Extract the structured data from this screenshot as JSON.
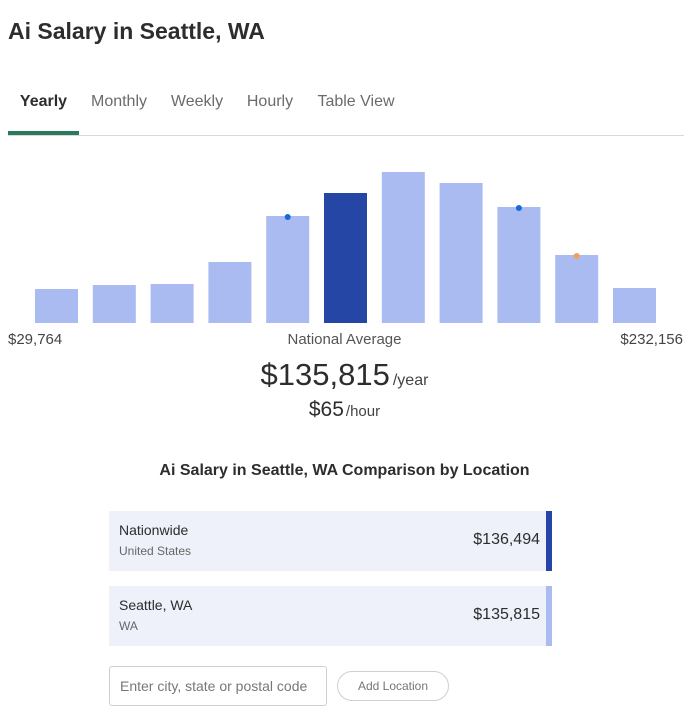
{
  "page": {
    "title": "Ai Salary in Seattle, WA"
  },
  "tabs": [
    {
      "label": "Yearly",
      "active": true
    },
    {
      "label": "Monthly",
      "active": false
    },
    {
      "label": "Weekly",
      "active": false
    },
    {
      "label": "Hourly",
      "active": false
    },
    {
      "label": "Table View",
      "active": false
    }
  ],
  "chart_data": {
    "type": "bar",
    "colors": {
      "bar": "#a9bbf0",
      "highlight": "#2546a5",
      "marker_blue": "#1769d9",
      "marker_orange": "#f5a05a"
    },
    "bars": [
      {
        "value": 34,
        "highlight": false,
        "marker": null
      },
      {
        "value": 38,
        "highlight": false,
        "marker": null
      },
      {
        "value": 39,
        "highlight": false,
        "marker": null
      },
      {
        "value": 61,
        "highlight": false,
        "marker": null
      },
      {
        "value": 107,
        "highlight": false,
        "marker": "blue",
        "marker_value": 106
      },
      {
        "value": 130,
        "highlight": true,
        "marker": null
      },
      {
        "value": 151,
        "highlight": false,
        "marker": null
      },
      {
        "value": 140,
        "highlight": false,
        "marker": null
      },
      {
        "value": 116,
        "highlight": false,
        "marker": "blue",
        "marker_value": 115
      },
      {
        "value": 68,
        "highlight": false,
        "marker": "orange",
        "marker_value": 67
      },
      {
        "value": 35,
        "highlight": false,
        "marker": null
      }
    ],
    "range_min": "$29,764",
    "range_max": "$232,156",
    "center_label": "National Average"
  },
  "summary": {
    "yearly_amount": "$135,815",
    "yearly_unit": "/year",
    "hourly_amount": "$65",
    "hourly_unit": "/hour"
  },
  "comparison": {
    "title": "Ai Salary in Seattle, WA Comparison by Location",
    "locations": [
      {
        "name": "Nationwide",
        "sub": "United States",
        "value": "$136,494",
        "bar_color": "#2546a5"
      },
      {
        "name": "Seattle, WA",
        "sub": "WA",
        "value": "$135,815",
        "bar_color": "#a9bbf0"
      }
    ],
    "input_placeholder": "Enter city, state or postal code",
    "add_button_label": "Add Location"
  }
}
